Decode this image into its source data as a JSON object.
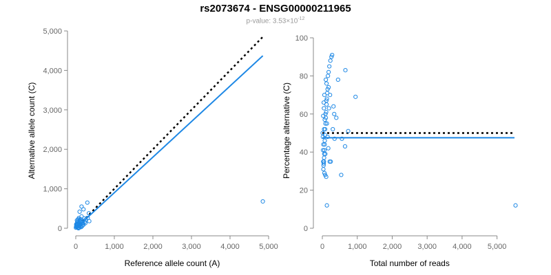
{
  "header": {
    "title": "rs2073674 - ENSG00000211965",
    "pvalue_prefix": "p-value: 3.53×10",
    "pvalue_exponent": "-12"
  },
  "colors": {
    "points": "#1e88e5",
    "fit": "#1e88e5",
    "reference": "#000000",
    "axis": "#888888"
  },
  "chart_data": [
    {
      "type": "scatter",
      "xlabel": "Reference allele count (A)",
      "ylabel": "Alternative allele count (C)",
      "xlim": [
        0,
        5000
      ],
      "ylim": [
        0,
        5000
      ],
      "xticks": [
        0,
        1000,
        2000,
        3000,
        4000,
        5000
      ],
      "xtick_labels": [
        "0",
        "1,000",
        "2,000",
        "3,000",
        "4,000",
        "5,000"
      ],
      "yticks": [
        0,
        1000,
        2000,
        3000,
        4000,
        5000
      ],
      "ytick_labels": [
        "0",
        "1,000",
        "2,000",
        "3,000",
        "4,000",
        "5,000"
      ],
      "grid": false,
      "points": [
        [
          4850,
          680
        ],
        [
          300,
          650
        ],
        [
          150,
          550
        ],
        [
          200,
          480
        ],
        [
          340,
          380
        ],
        [
          310,
          260
        ],
        [
          350,
          180
        ],
        [
          260,
          220
        ],
        [
          230,
          160
        ],
        [
          190,
          120
        ],
        [
          150,
          300
        ],
        [
          100,
          420
        ],
        [
          120,
          230
        ],
        [
          80,
          260
        ],
        [
          60,
          200
        ],
        [
          40,
          160
        ],
        [
          30,
          120
        ],
        [
          20,
          80
        ],
        [
          10,
          40
        ],
        [
          5,
          15
        ],
        [
          15,
          60
        ],
        [
          25,
          30
        ],
        [
          35,
          70
        ],
        [
          50,
          40
        ],
        [
          55,
          90
        ],
        [
          70,
          60
        ],
        [
          80,
          110
        ],
        [
          90,
          150
        ],
        [
          110,
          80
        ],
        [
          130,
          100
        ],
        [
          140,
          170
        ],
        [
          160,
          140
        ],
        [
          170,
          60
        ],
        [
          180,
          190
        ],
        [
          120,
          40
        ],
        [
          60,
          20
        ],
        [
          45,
          110
        ],
        [
          75,
          130
        ],
        [
          95,
          50
        ],
        [
          200,
          90
        ],
        [
          220,
          250
        ],
        [
          100,
          180
        ],
        [
          65,
          230
        ],
        [
          85,
          10
        ],
        [
          30,
          200
        ],
        [
          12,
          100
        ],
        [
          140,
          30
        ],
        [
          105,
          200
        ],
        [
          250,
          130
        ],
        [
          70,
          0
        ]
      ],
      "fit_line": {
        "x": [
          0,
          4850
        ],
        "y": [
          0,
          4370
        ]
      },
      "reference_line": {
        "x": [
          0,
          4850
        ],
        "y": [
          0,
          4850
        ]
      }
    },
    {
      "type": "scatter",
      "xlabel": "Total number of reads",
      "ylabel": "Percentage alternative (C)",
      "xlim": [
        0,
        5500
      ],
      "ylim": [
        0,
        100
      ],
      "xticks": [
        0,
        1000,
        2000,
        3000,
        4000,
        5000
      ],
      "xtick_labels": [
        "0",
        "1,000",
        "2,000",
        "3,000",
        "4,000",
        "5,000"
      ],
      "yticks": [
        0,
        20,
        40,
        60,
        80,
        100
      ],
      "ytick_labels": [
        "0",
        "20",
        "40",
        "60",
        "80",
        "100"
      ],
      "grid": false,
      "points": [
        [
          5530,
          12
        ],
        [
          950,
          69
        ],
        [
          660,
          83
        ],
        [
          650,
          43
        ],
        [
          740,
          51
        ],
        [
          540,
          28
        ],
        [
          560,
          47
        ],
        [
          450,
          78
        ],
        [
          340,
          60
        ],
        [
          320,
          64
        ],
        [
          280,
          91
        ],
        [
          260,
          90
        ],
        [
          230,
          88
        ],
        [
          200,
          85
        ],
        [
          180,
          82
        ],
        [
          160,
          80
        ],
        [
          150,
          73
        ],
        [
          140,
          71
        ],
        [
          130,
          68
        ],
        [
          120,
          65
        ],
        [
          110,
          61
        ],
        [
          100,
          58
        ],
        [
          90,
          55
        ],
        [
          80,
          52
        ],
        [
          75,
          49
        ],
        [
          70,
          46
        ],
        [
          65,
          44
        ],
        [
          60,
          41
        ],
        [
          55,
          39
        ],
        [
          50,
          37
        ],
        [
          45,
          35
        ],
        [
          40,
          34
        ],
        [
          35,
          33
        ],
        [
          30,
          31
        ],
        [
          25,
          35
        ],
        [
          20,
          41
        ],
        [
          15,
          48
        ],
        [
          10,
          50
        ],
        [
          110,
          27
        ],
        [
          130,
          12
        ],
        [
          170,
          42
        ],
        [
          210,
          35
        ],
        [
          240,
          35
        ],
        [
          100,
          78
        ],
        [
          60,
          70
        ],
        [
          40,
          66
        ],
        [
          120,
          76
        ],
        [
          90,
          60
        ],
        [
          70,
          57
        ],
        [
          50,
          52
        ],
        [
          30,
          44
        ],
        [
          80,
          28
        ],
        [
          150,
          48
        ],
        [
          190,
          63
        ],
        [
          300,
          52
        ],
        [
          400,
          58
        ],
        [
          350,
          47
        ],
        [
          220,
          70
        ],
        [
          130,
          55
        ],
        [
          180,
          74
        ],
        [
          115,
          67
        ],
        [
          85,
          39
        ],
        [
          60,
          29
        ],
        [
          45,
          63
        ],
        [
          25,
          59
        ]
      ],
      "fit_line": {
        "x": [
          0,
          5500
        ],
        "y": [
          47.5,
          47.5
        ]
      },
      "reference_line": {
        "x": [
          0,
          5500
        ],
        "y": [
          50,
          50
        ]
      }
    }
  ]
}
